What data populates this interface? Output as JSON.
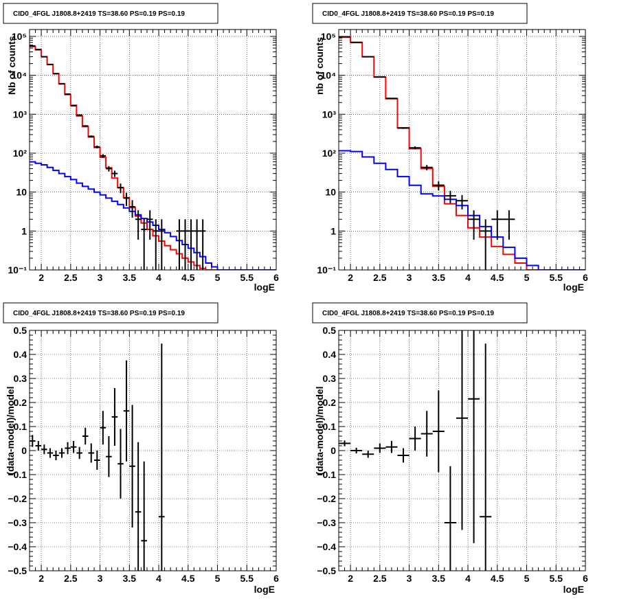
{
  "chart_data": [
    {
      "type": "line",
      "title": "CID0_4FGL J1808.8+2419 TS=38.60 PS=0.19 PS=0.19",
      "xlabel": "logE",
      "ylabel": "Nb of counts",
      "xlim": [
        1.8,
        6
      ],
      "ylim": [
        0.1,
        150000
      ],
      "log_y": true,
      "grid": true,
      "x_ticks": [
        "2",
        "2.5",
        "3",
        "3.5",
        "4",
        "4.5",
        "5",
        "5.5",
        "6"
      ],
      "y_ticks": [
        "10⁻¹",
        "1",
        "10",
        "10²",
        "10³",
        "10⁴",
        "10⁵"
      ],
      "bin_width": 0.1,
      "series": [
        {
          "color": "#ff0000",
          "style": "step",
          "x": [
            1.85,
            1.95,
            2.05,
            2.15,
            2.25,
            2.35,
            2.45,
            2.55,
            2.65,
            2.75,
            2.85,
            2.95,
            3.05,
            3.15,
            3.25,
            3.35,
            3.45,
            3.55,
            3.65,
            3.75,
            3.85,
            3.95,
            4.05,
            4.15,
            4.25,
            4.35,
            4.45,
            4.55,
            4.65,
            4.75,
            4.85,
            4.95,
            5.05,
            5.15,
            5.25,
            5.35,
            5.45,
            5.55,
            5.65,
            5.75,
            5.85,
            5.95
          ],
          "values": [
            55000,
            45000,
            30000,
            19000,
            11000,
            6000,
            3200,
            1700,
            900,
            480,
            260,
            140,
            78,
            42,
            23,
            13,
            7.2,
            4.0,
            2.4,
            1.6,
            1.1,
            0.75,
            0.55,
            0.42,
            0.33,
            0.26,
            0.2,
            0.16,
            0.13,
            0.11,
            0.1,
            0.1,
            0.1,
            0.1,
            0.1,
            0.1,
            0.1,
            0.1,
            0.1,
            0.1,
            0.1,
            0.1
          ]
        },
        {
          "color": "#0000ff",
          "style": "step",
          "x": [
            1.85,
            1.95,
            2.05,
            2.15,
            2.25,
            2.35,
            2.45,
            2.55,
            2.65,
            2.75,
            2.85,
            2.95,
            3.05,
            3.15,
            3.25,
            3.35,
            3.45,
            3.55,
            3.65,
            3.75,
            3.85,
            3.95,
            4.05,
            4.15,
            4.25,
            4.35,
            4.45,
            4.55,
            4.65,
            4.75,
            4.85,
            4.95,
            5.05,
            5.15,
            5.25,
            5.35,
            5.45,
            5.55,
            5.65,
            5.75,
            5.85,
            5.95
          ],
          "values": [
            60,
            55,
            50,
            43,
            36,
            30,
            25,
            21,
            17,
            14,
            12,
            10,
            8.5,
            7.0,
            5.8,
            4.8,
            3.9,
            3.2,
            2.6,
            2.1,
            1.7,
            1.4,
            1.1,
            0.9,
            0.72,
            0.57,
            0.45,
            0.36,
            0.28,
            0.22,
            0.15,
            0.12,
            0.1,
            0.1,
            0.1,
            0.1,
            0.1,
            0.1,
            0.1,
            0.1,
            0.1,
            0.1
          ]
        },
        {
          "color": "#000000",
          "style": "errorbar",
          "x": [
            1.85,
            1.95,
            2.05,
            2.15,
            2.25,
            2.35,
            2.45,
            2.55,
            2.65,
            2.75,
            2.85,
            2.95,
            3.05,
            3.15,
            3.25,
            3.35,
            3.45,
            3.55,
            3.65,
            3.75,
            3.85,
            3.95,
            4.05,
            4.35,
            4.45,
            4.55,
            4.65,
            4.75
          ],
          "values": [
            57000,
            46000,
            30000,
            19000,
            11000,
            6100,
            3300,
            1650,
            950,
            500,
            270,
            145,
            85,
            40,
            30,
            13,
            7,
            4.2,
            2,
            1.1,
            2,
            1,
            1,
            1,
            1,
            1,
            1,
            1
          ],
          "errors": [
            240,
            215,
            173,
            138,
            105,
            78,
            57,
            41,
            31,
            22,
            16,
            12,
            9,
            6.3,
            5.5,
            3.6,
            2.6,
            2,
            1.4,
            1,
            1.4,
            1,
            1,
            1,
            1,
            1,
            1,
            1
          ]
        }
      ]
    },
    {
      "type": "line",
      "title": "CID0_4FGL J1808.8+2419 TS=38.60 PS=0.19 PS=0.19",
      "xlabel": "logE",
      "ylabel": "nb of counts",
      "xlim": [
        1.8,
        6
      ],
      "ylim": [
        0.1,
        150000
      ],
      "log_y": true,
      "grid": true,
      "x_ticks": [
        "2",
        "2.5",
        "3",
        "3.5",
        "4",
        "4.5",
        "5",
        "5.5",
        "6"
      ],
      "y_ticks": [
        "10⁻¹",
        "1",
        "10",
        "10²",
        "10³",
        "10⁴",
        "10⁵"
      ],
      "bin_width": 0.2,
      "series": [
        {
          "color": "#ff0000",
          "style": "step",
          "x": [
            1.9,
            2.1,
            2.3,
            2.5,
            2.7,
            2.9,
            3.1,
            3.3,
            3.5,
            3.7,
            3.9,
            4.1,
            4.3,
            4.5,
            4.7,
            4.9,
            5.1,
            5.3,
            5.5,
            5.7,
            5.9
          ],
          "values": [
            95000,
            70000,
            30000,
            9000,
            2500,
            450,
            130,
            40,
            14,
            5,
            2.5,
            1.2,
            0.7,
            0.4,
            0.25,
            0.15,
            0.1,
            0.1,
            0.1,
            0.1,
            0.1
          ]
        },
        {
          "color": "#0000ff",
          "style": "step",
          "x": [
            1.9,
            2.1,
            2.3,
            2.5,
            2.7,
            2.9,
            3.1,
            3.3,
            3.5,
            3.7,
            3.9,
            4.1,
            4.3,
            4.5,
            4.7,
            4.9,
            5.1,
            5.3,
            5.5,
            5.7,
            5.9
          ],
          "values": [
            115,
            110,
            80,
            55,
            38,
            25,
            15,
            9,
            8,
            6.5,
            4.5,
            2.5,
            1.3,
            0.7,
            0.38,
            0.2,
            0.13,
            0.1,
            0.1,
            0.1,
            0.1
          ]
        },
        {
          "color": "#000000",
          "style": "errorbar",
          "x": [
            1.9,
            2.1,
            2.3,
            2.5,
            2.7,
            2.9,
            3.1,
            3.3,
            3.5,
            3.7,
            3.9,
            4.1,
            4.3,
            4.5,
            4.7
          ],
          "values": [
            98000,
            70000,
            30000,
            9100,
            2550,
            440,
            137,
            43,
            15,
            8,
            6,
            2,
            1,
            2,
            2
          ],
          "errors": [
            313,
            265,
            173,
            95,
            50,
            21,
            11.7,
            6.6,
            3.9,
            2.8,
            2.4,
            1.4,
            1,
            1.4,
            1.4
          ]
        }
      ]
    },
    {
      "type": "scatter",
      "title": "CID0_4FGL J1808.8+2419 TS=38.60 PS=0.19 PS=0.19",
      "xlabel": "logE",
      "ylabel": "(data-model)/model",
      "xlim": [
        1.8,
        6
      ],
      "ylim": [
        -0.5,
        0.5
      ],
      "grid": true,
      "x_ticks": [
        "2",
        "2.5",
        "3",
        "3.5",
        "4",
        "4.5",
        "5",
        "5.5",
        "6"
      ],
      "y_ticks": [
        "−0.5",
        "−0.4",
        "−0.3",
        "−0.2",
        "−0.1",
        "0",
        "0.1",
        "0.2",
        "0.3",
        "0.4",
        "0.5"
      ],
      "bin_width": 0.1,
      "series": [
        {
          "color": "#000000",
          "style": "errorbar",
          "x": [
            1.85,
            1.95,
            2.05,
            2.15,
            2.25,
            2.35,
            2.45,
            2.55,
            2.65,
            2.75,
            2.85,
            2.95,
            3.05,
            3.15,
            3.25,
            3.35,
            3.45,
            3.55,
            3.65,
            3.75,
            4.05
          ],
          "values": [
            0.04,
            0.02,
            0.005,
            -0.01,
            -0.02,
            -0.01,
            0.01,
            0.015,
            -0.01,
            0.06,
            -0.01,
            -0.04,
            0.095,
            -0.025,
            0.14,
            -0.055,
            0.165,
            -0.065,
            -0.255,
            -0.375,
            -0.275
          ],
          "errors": [
            0.025,
            0.02,
            0.02,
            0.02,
            0.02,
            0.02,
            0.025,
            0.025,
            0.025,
            0.035,
            0.04,
            0.04,
            0.07,
            0.085,
            0.12,
            0.145,
            0.21,
            0.255,
            0.29,
            0.33,
            0.72
          ]
        }
      ]
    },
    {
      "type": "scatter",
      "title": "CID0_4FGL J1808.8+2419 TS=38.60 PS=0.19 PS=0.19",
      "xlabel": "logE",
      "ylabel": "(data-model)/model",
      "xlim": [
        1.8,
        6
      ],
      "ylim": [
        -0.5,
        0.5
      ],
      "grid": true,
      "x_ticks": [
        "2",
        "2.5",
        "3",
        "3.5",
        "4",
        "4.5",
        "5",
        "5.5",
        "6"
      ],
      "y_ticks": [
        "−0.5",
        "−0.4",
        "−0.3",
        "−0.2",
        "−0.1",
        "0",
        "0.1",
        "0.2",
        "0.3",
        "0.4",
        "0.5"
      ],
      "bin_width": 0.2,
      "series": [
        {
          "color": "#000000",
          "style": "errorbar",
          "x": [
            1.9,
            2.1,
            2.3,
            2.5,
            2.7,
            2.9,
            3.1,
            3.3,
            3.5,
            3.7,
            3.9,
            4.1,
            4.3
          ],
          "values": [
            0.03,
            0.0,
            -0.015,
            0.01,
            0.015,
            -0.02,
            0.05,
            0.07,
            0.08,
            -0.3,
            0.135,
            0.215,
            -0.275
          ],
          "errors": [
            0.012,
            0.012,
            0.015,
            0.02,
            0.025,
            0.03,
            0.05,
            0.095,
            0.17,
            0.235,
            0.465,
            0.6,
            0.72
          ]
        }
      ]
    }
  ]
}
